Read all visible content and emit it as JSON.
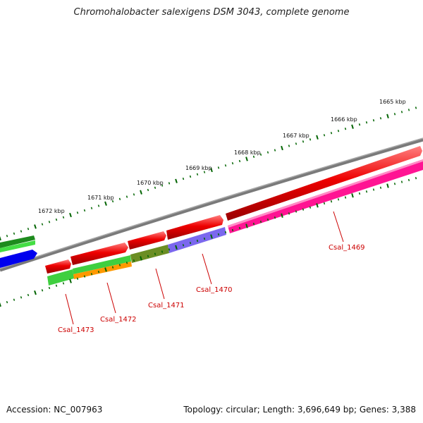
{
  "title": "Chromohalobacter salexigens DSM 3043, complete genome",
  "footer": {
    "accession": "Accession: NC_007963",
    "summary": "Topology: circular; Length: 3,696,649 bp; Genes: 3,388"
  },
  "kbp_ticks": [
    "1665 kbp",
    "1666 kbp",
    "1667 kbp",
    "1668 kbp",
    "1669 kbp",
    "1670 kbp",
    "1671 kbp",
    "1672 kbp"
  ],
  "gene_labels": [
    "Csal_1469",
    "Csal_1470",
    "Csal_1471",
    "Csal_1472",
    "Csal_1473"
  ],
  "colors": {
    "backbone": "#808080",
    "red": "#ee0000",
    "magenta": "#ff1493",
    "purple": "#7b68ee",
    "olive": "#6b8e23",
    "light_green": "#3fcf3f",
    "orange": "#ff9900",
    "dark_green": "#228b22",
    "blue": "#0000ee",
    "tick_green": "#006400",
    "label_red": "#cc0000"
  }
}
